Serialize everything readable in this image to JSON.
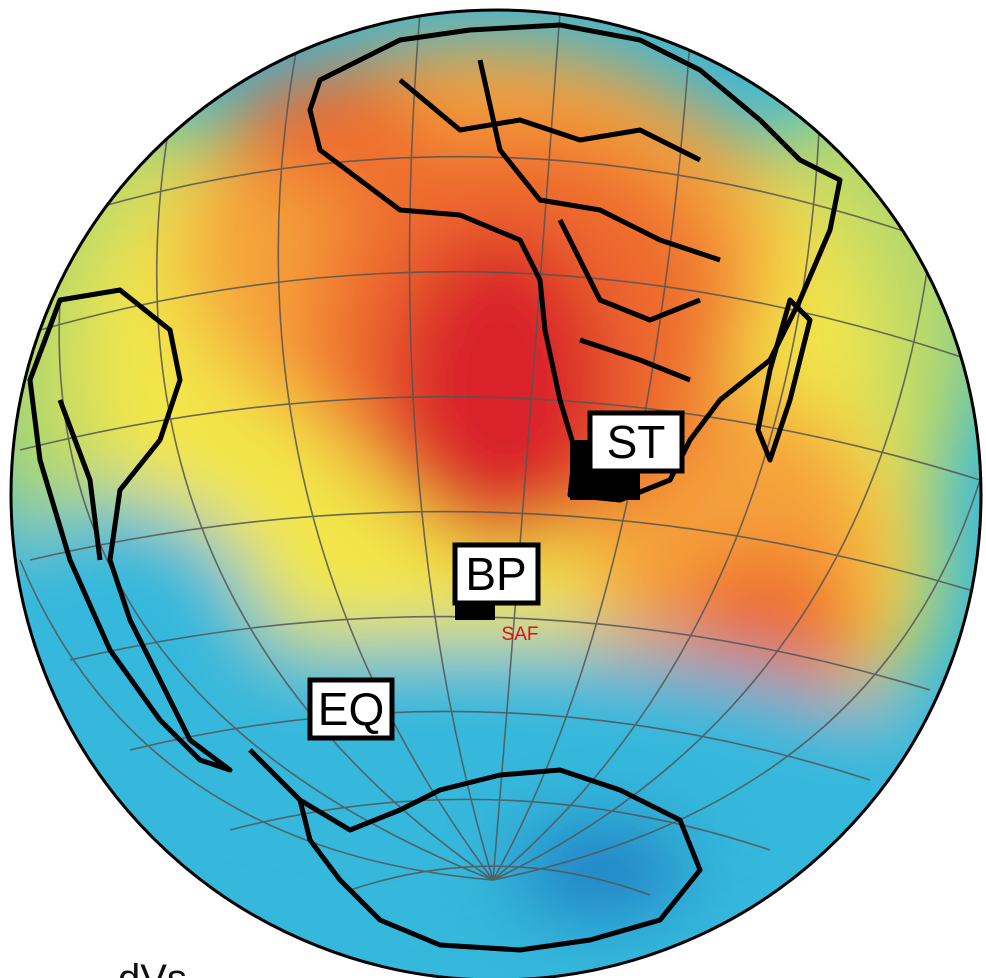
{
  "map": {
    "labels": {
      "st": "ST",
      "bp": "BP",
      "eq": "EQ",
      "saf": "SAF"
    },
    "legend_label": "dVs",
    "colors": {
      "slow_strong": "#d9202a",
      "slow": "#ee6a2e",
      "slow_weak": "#f5a23a",
      "neutral": "#f2e64a",
      "fast_weak": "#b6d86a",
      "fast": "#34b8dc",
      "fast_strong": "#1a78c2",
      "saf_label": "#e01010",
      "coastline": "#000000",
      "graticule": "#555555"
    }
  }
}
